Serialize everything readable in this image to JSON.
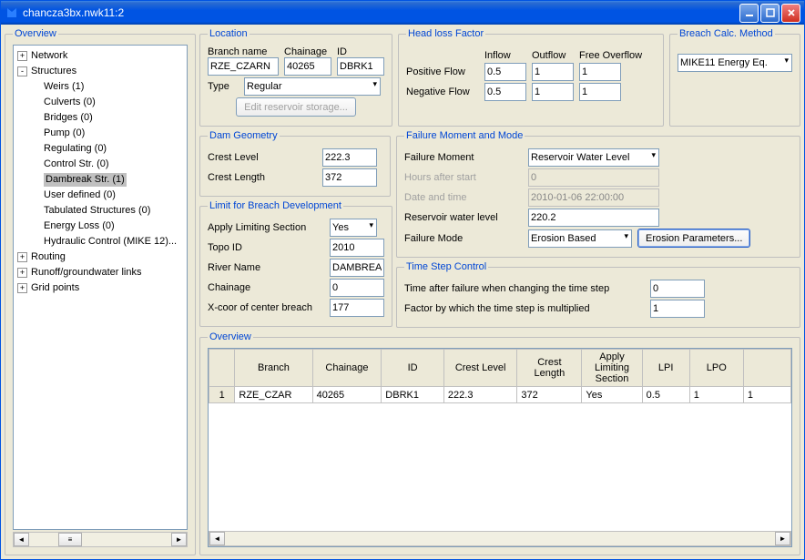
{
  "window": {
    "title": "chancza3bx.nwk11:2"
  },
  "tree": {
    "legend": "Overview",
    "items": [
      {
        "label": "Network",
        "exp": "+"
      },
      {
        "label": "Structures",
        "exp": "-",
        "children": [
          {
            "label": "Weirs (1)"
          },
          {
            "label": "Culverts (0)"
          },
          {
            "label": "Bridges (0)"
          },
          {
            "label": "Pump (0)"
          },
          {
            "label": "Regulating (0)"
          },
          {
            "label": "Control Str. (0)"
          },
          {
            "label": "Dambreak Str. (1)",
            "selected": true
          },
          {
            "label": "User defined (0)"
          },
          {
            "label": "Tabulated Structures (0)"
          },
          {
            "label": "Energy Loss (0)"
          },
          {
            "label": "Hydraulic Control (MIKE 12)..."
          }
        ]
      },
      {
        "label": "Routing",
        "exp": "+"
      },
      {
        "label": "Runoff/groundwater links",
        "exp": "+"
      },
      {
        "label": "Grid points",
        "exp": "+"
      }
    ]
  },
  "location": {
    "legend": "Location",
    "branch_label": "Branch name",
    "chainage_label": "Chainage",
    "id_label": "ID",
    "branch": "RZE_CZARN",
    "chainage": "40265",
    "id": "DBRK1",
    "type_label": "Type",
    "type": "Regular",
    "edit_btn": "Edit reservoir storage..."
  },
  "headloss": {
    "legend": "Head loss Factor",
    "inflow": "Inflow",
    "outflow": "Outflow",
    "freeover": "Free Overflow",
    "pos": "Positive Flow",
    "neg": "Negative Flow",
    "pos_in": "0.5",
    "pos_out": "1",
    "pos_free": "1",
    "neg_in": "0.5",
    "neg_out": "1",
    "neg_free": "1"
  },
  "breach_method": {
    "legend": "Breach Calc. Method",
    "value": "MIKE11 Energy Eq."
  },
  "dam": {
    "legend": "Dam Geometry",
    "crest_level_label": "Crest Level",
    "crest_level": "222.3",
    "crest_length_label": "Crest Length",
    "crest_length": "372"
  },
  "limit": {
    "legend": "Limit for Breach Development",
    "apply_label": "Apply Limiting Section",
    "apply": "Yes",
    "topo_label": "Topo ID",
    "topo": "2010",
    "river_label": "River Name",
    "river": "DAMBREA",
    "chainage_label": "Chainage",
    "chainage": "0",
    "xcoor_label": "X-coor of center breach",
    "xcoor": "177"
  },
  "failure": {
    "legend": "Failure Moment and Mode",
    "fm_label": "Failure Moment",
    "fm": "Reservoir Water Level",
    "hrs_label": "Hours after start",
    "hrs": "0",
    "dt_label": "Date and time",
    "dt": "2010-01-06 22:00:00",
    "rwl_label": "Reservoir water level",
    "rwl": "220.2",
    "mode_label": "Failure Mode",
    "mode": "Erosion Based",
    "params_btn": "Erosion Parameters..."
  },
  "timestep": {
    "legend": "Time Step Control",
    "t1_label": "Time after failure when changing the time step",
    "t1": "0",
    "t2_label": "Factor by which the time step is multiplied",
    "t2": "1"
  },
  "overview": {
    "legend": "Overview",
    "columns": [
      "",
      "Branch",
      "Chainage",
      "ID",
      "Crest Level",
      "Crest Length",
      "Apply Limiting Section",
      "LPI",
      "LPO",
      ""
    ],
    "rows": [
      [
        "1",
        "RZE_CZAR",
        "40265",
        "DBRK1",
        "222.3",
        "372",
        "Yes",
        "0.5",
        "1",
        "1"
      ]
    ]
  }
}
